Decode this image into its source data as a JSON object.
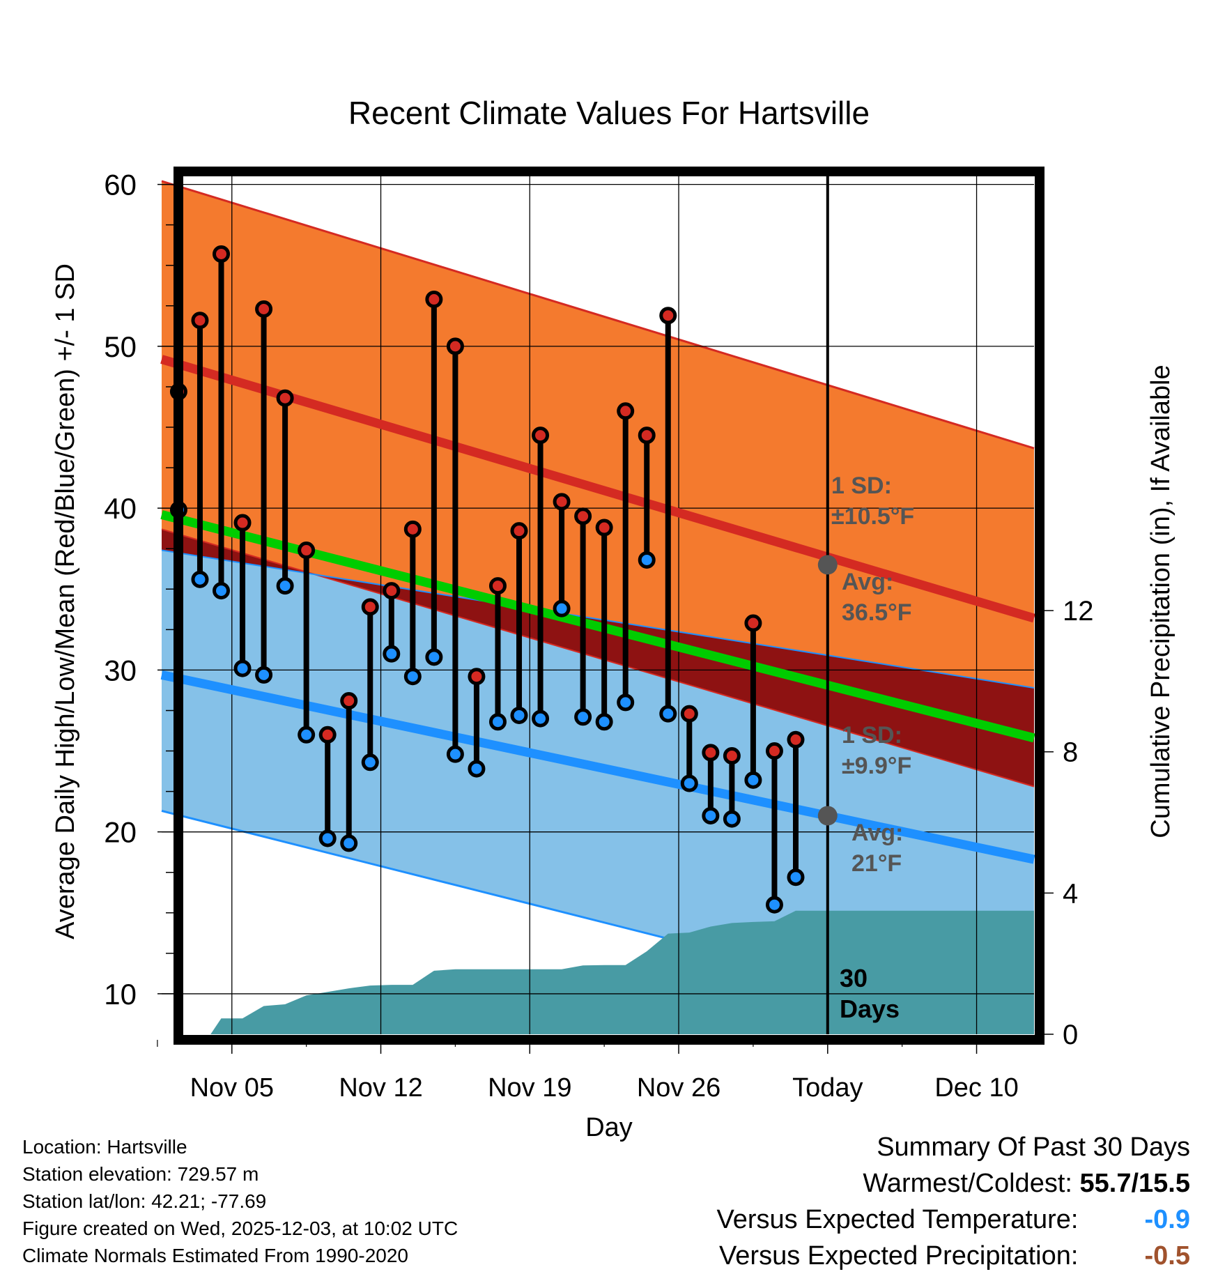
{
  "chart_data": {
    "type": "line",
    "title": "Recent Climate Values For Hartsville",
    "xlabel": "Day",
    "ylabel_left": "Average Daily High/Low/Mean (Red/Blue/Green) +/- 1 SD",
    "ylabel_right": "Cumulative Precipitation (in), If Available",
    "ylim_left": [
      7.5,
      60.5
    ],
    "ylim_right": [
      0,
      24.3
    ],
    "yticks_left": [
      "10",
      "20",
      "30",
      "40",
      "50",
      "60"
    ],
    "yticks_right": [
      "0",
      "4",
      "8",
      "12"
    ],
    "x_tick_labels": [
      "Nov 05",
      "Nov 12",
      "Nov 19",
      "Nov 26",
      "Today",
      "Dec 10"
    ],
    "x_tick_days": [
      5,
      12,
      19,
      26,
      33,
      40
    ],
    "day_range": [
      1.7,
      42.7
    ],
    "today_day": 33,
    "normals": {
      "start_day": 1.7,
      "end_day": 42.7,
      "high_avg": [
        49.2,
        33.2
      ],
      "high_upper": [
        60.2,
        43.7
      ],
      "high_lower": [
        38.7,
        22.8
      ],
      "low_avg": [
        29.7,
        18.3
      ],
      "low_upper": [
        37.4,
        28.9
      ],
      "low_lower": [
        21.3,
        7.7
      ],
      "mean_avg": [
        39.6,
        25.8
      ]
    },
    "observed": {
      "days": [
        2.5,
        3.5,
        4.5,
        5.5,
        6.5,
        7.5,
        8.5,
        9.5,
        10.5,
        11.5,
        12.5,
        13.5,
        14.5,
        15.5,
        16.5,
        17.5,
        18.5,
        19.5,
        20.5,
        21.5,
        22.5,
        23.5,
        24.5,
        25.5,
        26.5,
        27.5,
        28.5,
        29.5,
        30.5,
        31.5
      ],
      "high": [
        47.2,
        51.6,
        55.7,
        39.1,
        52.3,
        46.8,
        37.4,
        26.0,
        28.1,
        33.9,
        34.9,
        38.7,
        52.9,
        50.0,
        29.6,
        35.2,
        38.6,
        44.5,
        40.4,
        39.5,
        38.8,
        46.0,
        44.5,
        51.9,
        27.3,
        24.9,
        24.7,
        32.9,
        25.0,
        25.7
      ],
      "low": [
        39.9,
        35.6,
        34.9,
        30.1,
        29.7,
        35.2,
        26.0,
        19.6,
        19.3,
        24.3,
        31.0,
        29.6,
        30.8,
        24.8,
        23.9,
        26.8,
        27.2,
        27.0,
        33.8,
        27.1,
        26.8,
        28.0,
        36.8,
        27.3,
        23.0,
        21.0,
        20.8,
        23.2,
        15.5,
        17.2
      ]
    },
    "precip_cumulative": {
      "days": [
        1.7,
        4.0,
        4.5,
        5.5,
        6.5,
        7.5,
        8.5,
        9.5,
        10.5,
        11.5,
        12.5,
        13.5,
        14.5,
        15.5,
        16.5,
        17.5,
        18.5,
        19.5,
        20.5,
        21.5,
        22.5,
        23.5,
        24.5,
        25.5,
        26.5,
        27.5,
        28.5,
        29.5,
        30.5,
        31.5,
        42.7
      ],
      "values": [
        0,
        0,
        0.45,
        0.45,
        0.8,
        0.85,
        1.1,
        1.2,
        1.3,
        1.38,
        1.4,
        1.4,
        1.8,
        1.84,
        1.84,
        1.84,
        1.84,
        1.84,
        1.84,
        1.95,
        1.96,
        1.96,
        2.35,
        2.85,
        2.88,
        3.05,
        3.15,
        3.18,
        3.2,
        3.5,
        3.5
      ]
    },
    "annotations": {
      "high_sd_label": "1 SD:",
      "high_sd_value": "±10.5°F",
      "high_avg_label": "Avg:",
      "high_avg_value": "36.5°F",
      "high_avg_today": 36.5,
      "low_sd_label": "1 SD:",
      "low_sd_value": "±9.9°F",
      "low_avg_label": "Avg:",
      "low_avg_value": "21°F",
      "low_avg_today": 21.0,
      "days_count": "30",
      "days_word": "Days"
    },
    "colors": {
      "high_band": "#f47a2e",
      "high_line": "#d42a22",
      "low_band": "#85c1e8",
      "low_line": "#1e90ff",
      "overlap": "#8e1212",
      "mean_line": "#00cc00",
      "precip": "#489ba4",
      "high_marker": "#d42a22",
      "low_marker": "#1e90ff",
      "avg_marker": "#555555"
    }
  },
  "info": {
    "location": "Location: Hartsville",
    "elevation": "Station elevation: 729.57 m",
    "latlon": "Station lat/lon: 42.21; -77.69",
    "created": "Figure created on Wed, 2025-12-03, at 10:02 UTC",
    "normals": "Climate Normals Estimated From 1990-2020"
  },
  "summary": {
    "title": "Summary Of Past 30 Days",
    "warmest_label": "Warmest/Coldest:",
    "warmest_value": "55.7/15.5",
    "temp_label": "Versus Expected Temperature:",
    "temp_value": "-0.9",
    "temp_color": "#1e90ff",
    "precip_label": "Versus Expected Precipitation:",
    "precip_value": "-0.5",
    "precip_color": "#a0522d"
  }
}
